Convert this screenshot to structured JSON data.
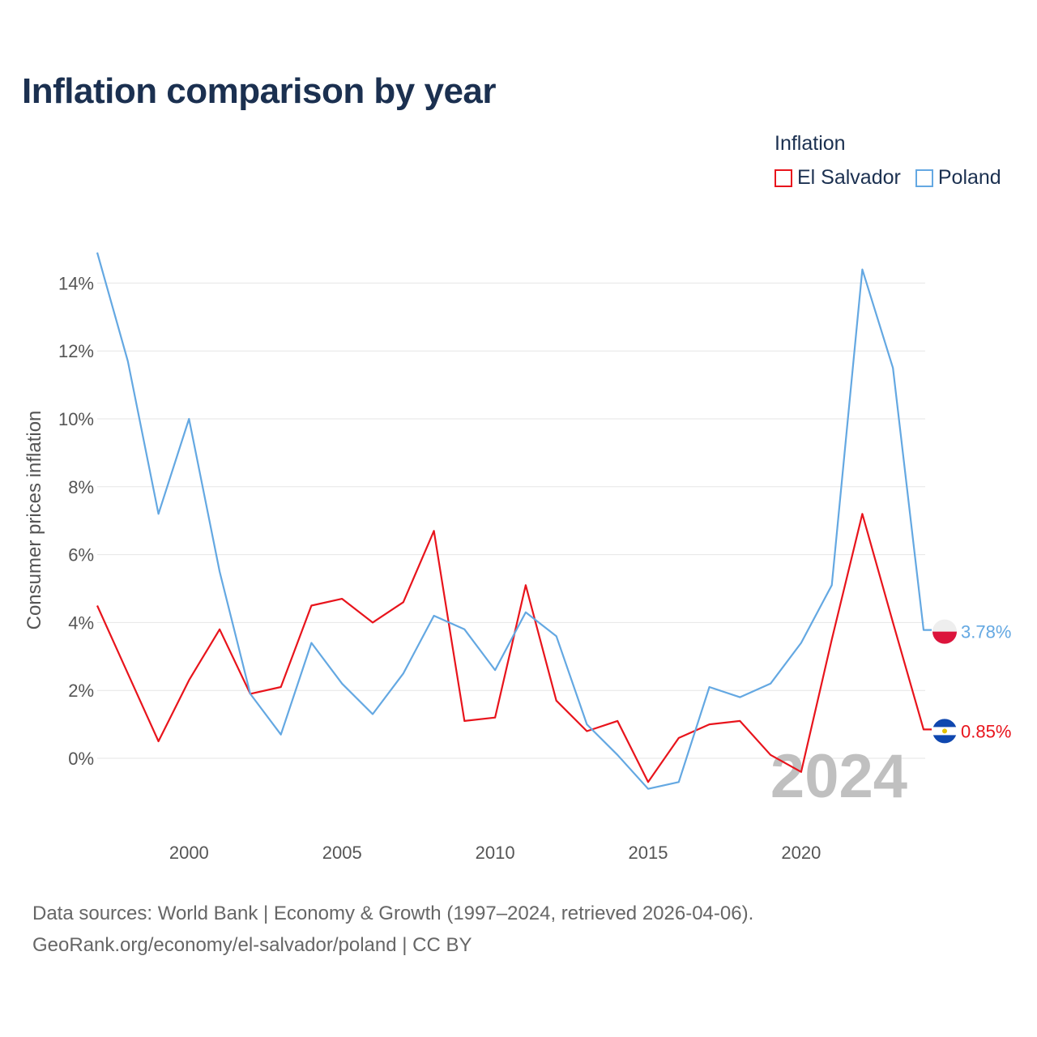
{
  "title": "Inflation comparison by year",
  "legend": {
    "title": "Inflation",
    "items": [
      {
        "label": "El Salvador",
        "color": "#e8141c"
      },
      {
        "label": "Poland",
        "color": "#64a8e2"
      }
    ]
  },
  "footer": {
    "line1": "Data sources: World Bank | Economy & Growth (1997–2024, retrieved 2026-04-06).",
    "line2": "GeoRank.org/economy/el-salvador/poland | CC BY"
  },
  "watermark": "2024",
  "chart_data": {
    "type": "line",
    "title": "Inflation comparison by year",
    "xlabel": "",
    "ylabel": "Consumer prices inflation",
    "x": [
      1997,
      1998,
      1999,
      2000,
      2001,
      2002,
      2003,
      2004,
      2005,
      2006,
      2007,
      2008,
      2009,
      2010,
      2011,
      2012,
      2013,
      2014,
      2015,
      2016,
      2017,
      2018,
      2019,
      2020,
      2021,
      2022,
      2023,
      2024
    ],
    "xlim": [
      1997,
      2024
    ],
    "ylim": [
      -1.8,
      15.0
    ],
    "x_ticks": [
      2000,
      2005,
      2010,
      2015,
      2020
    ],
    "x_tick_labels": [
      "2000",
      "2005",
      "2010",
      "2015",
      "2020"
    ],
    "y_ticks": [
      0,
      2,
      4,
      6,
      8,
      10,
      12,
      14
    ],
    "y_tick_labels": [
      "0%",
      "2%",
      "4%",
      "6%",
      "8%",
      "10%",
      "12%",
      "14%"
    ],
    "grid": true,
    "legend_position": "top-right",
    "series": [
      {
        "name": "El Salvador",
        "color": "#e8141c",
        "values": [
          4.5,
          2.5,
          0.5,
          2.3,
          3.8,
          1.9,
          2.1,
          4.5,
          4.7,
          4.0,
          4.6,
          6.7,
          1.1,
          1.2,
          5.1,
          1.7,
          0.8,
          1.1,
          -0.7,
          0.6,
          1.0,
          1.1,
          0.1,
          -0.4,
          3.5,
          7.2,
          4.0,
          0.85
        ],
        "end_label": "0.85%"
      },
      {
        "name": "Poland",
        "color": "#64a8e2",
        "values": [
          14.9,
          11.7,
          7.2,
          10.0,
          5.5,
          1.9,
          0.7,
          3.4,
          2.2,
          1.3,
          2.5,
          4.2,
          3.8,
          2.6,
          4.3,
          3.6,
          1.0,
          0.1,
          -0.9,
          -0.7,
          2.1,
          1.8,
          2.2,
          3.4,
          5.1,
          14.4,
          11.5,
          3.78
        ],
        "end_label": "3.78%"
      }
    ]
  }
}
